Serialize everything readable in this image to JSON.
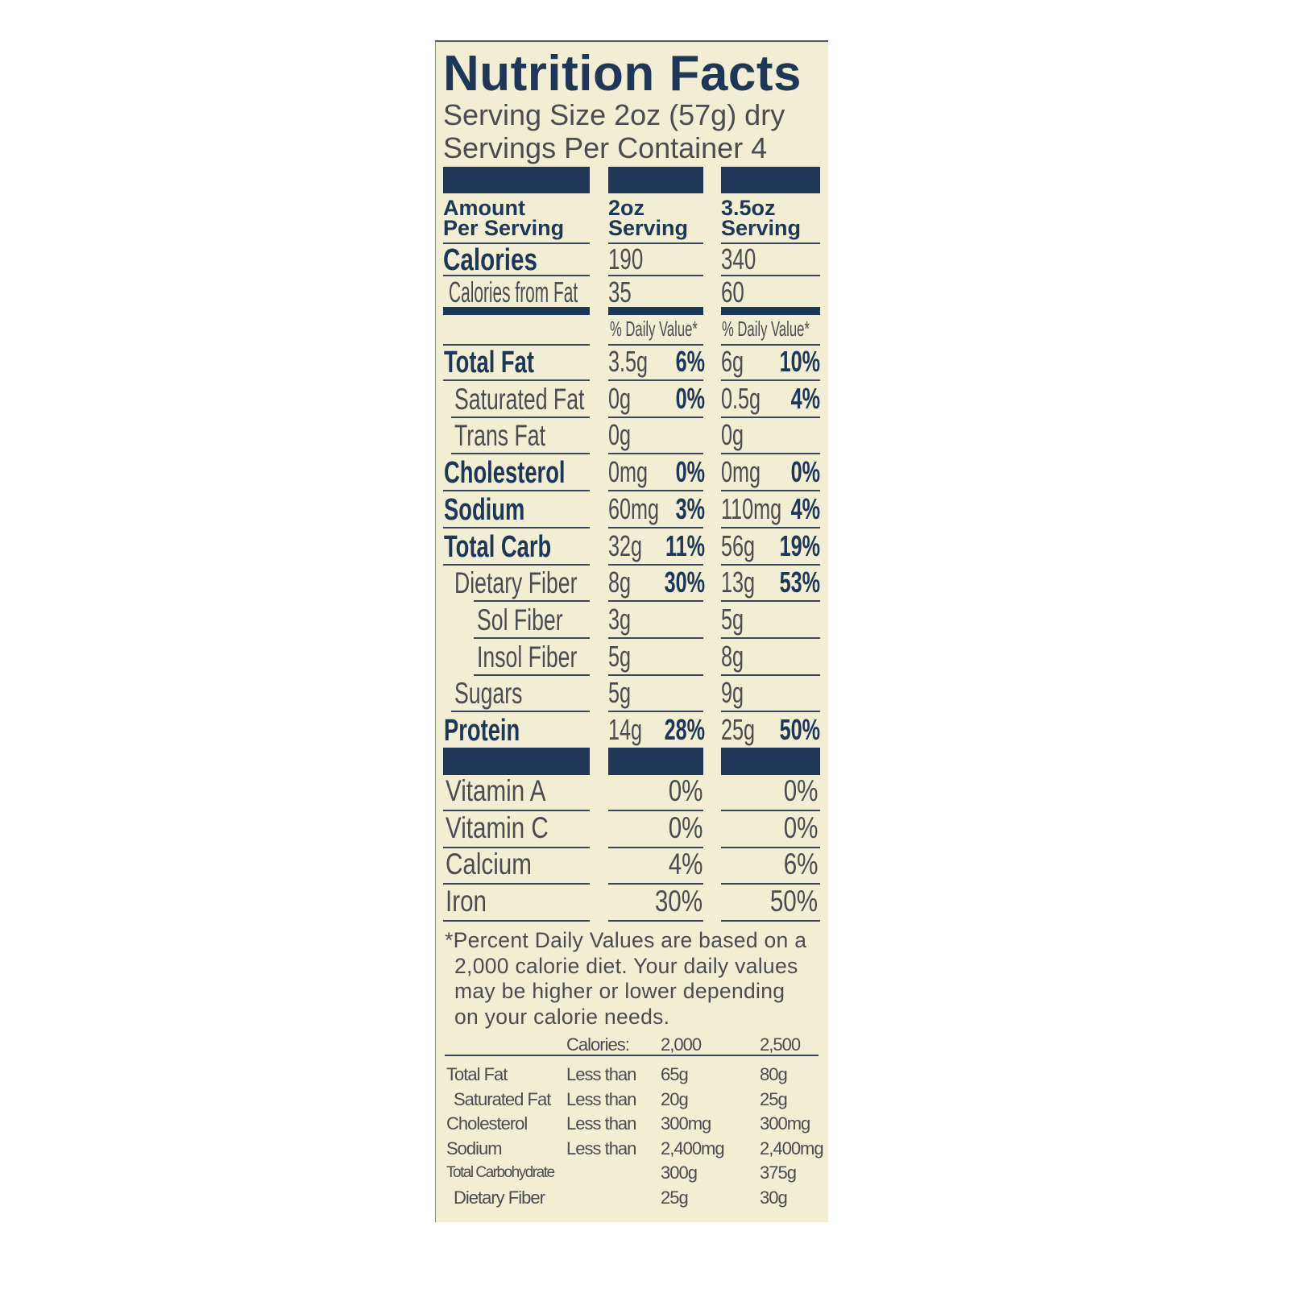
{
  "label": {
    "title": "Nutrition Facts",
    "serving_size": "Serving Size 2oz (57g) dry",
    "servings_per_container": "Servings Per Container 4",
    "header": {
      "amount_line1": "Amount",
      "amount_line2": "Per Serving",
      "col1_line1": "2oz",
      "col1_line2": "Serving",
      "col2_line1": "3.5oz",
      "col2_line2": "Serving"
    },
    "calories": {
      "label": "Calories",
      "col1": "190",
      "col2": "340"
    },
    "calories_from_fat": {
      "label": "Calories from Fat",
      "col1": "35",
      "col2": "60"
    },
    "daily_value_header": {
      "col1": "% Daily Value*",
      "col2": "% Daily Value*"
    },
    "nutrients": [
      {
        "label": "Total Fat",
        "bold": true,
        "indent": 0,
        "col1_amount": "3.5g",
        "col1_dv": "6%",
        "col2_amount": "6g",
        "col2_dv": "10%"
      },
      {
        "label": "Saturated Fat",
        "bold": false,
        "indent": 1,
        "col1_amount": "0g",
        "col1_dv": "0%",
        "col2_amount": "0.5g",
        "col2_dv": "4%"
      },
      {
        "label": "Trans Fat",
        "bold": false,
        "indent": 1,
        "col1_amount": "0g",
        "col1_dv": "",
        "col2_amount": "0g",
        "col2_dv": ""
      },
      {
        "label": "Cholesterol",
        "bold": true,
        "indent": 0,
        "col1_amount": "0mg",
        "col1_dv": "0%",
        "col2_amount": "0mg",
        "col2_dv": "0%"
      },
      {
        "label": "Sodium",
        "bold": true,
        "indent": 0,
        "col1_amount": "60mg",
        "col1_dv": "3%",
        "col2_amount": "110mg",
        "col2_dv": "4%"
      },
      {
        "label": "Total Carb",
        "bold": true,
        "indent": 0,
        "col1_amount": "32g",
        "col1_dv": "11%",
        "col2_amount": "56g",
        "col2_dv": "19%"
      },
      {
        "label": "Dietary Fiber",
        "bold": false,
        "indent": 1,
        "col1_amount": "8g",
        "col1_dv": "30%",
        "col2_amount": "13g",
        "col2_dv": "53%"
      },
      {
        "label": "Sol Fiber",
        "bold": false,
        "indent": 2,
        "col1_amount": "3g",
        "col1_dv": "",
        "col2_amount": "5g",
        "col2_dv": ""
      },
      {
        "label": "Insol Fiber",
        "bold": false,
        "indent": 2,
        "col1_amount": "5g",
        "col1_dv": "",
        "col2_amount": "8g",
        "col2_dv": ""
      },
      {
        "label": "Sugars",
        "bold": false,
        "indent": 1,
        "col1_amount": "5g",
        "col1_dv": "",
        "col2_amount": "9g",
        "col2_dv": ""
      },
      {
        "label": "Protein",
        "bold": true,
        "indent": 0,
        "col1_amount": "14g",
        "col1_dv": "28%",
        "col2_amount": "25g",
        "col2_dv": "50%"
      }
    ],
    "vitamins": [
      {
        "label": "Vitamin A",
        "col1": "0%",
        "col2": "0%"
      },
      {
        "label": "Vitamin C",
        "col1": "0%",
        "col2": "0%"
      },
      {
        "label": "Calcium",
        "col1": "4%",
        "col2": "6%"
      },
      {
        "label": "Iron",
        "col1": "30%",
        "col2": "50%"
      }
    ],
    "footnote": [
      "*Percent Daily Values are based on a",
      "2,000 calorie diet. Your daily values",
      "may be higher or lower depending",
      "on your calorie needs."
    ],
    "daily_table": {
      "header": {
        "label": "Calories:",
        "col1": "2,000",
        "col2": "2,500"
      },
      "rows": [
        {
          "nutrient": "Total Fat",
          "qualifier": "Less than",
          "col1": "65g",
          "col2": "80g"
        },
        {
          "nutrient": "Saturated Fat",
          "qualifier": "Less than",
          "col1": "20g",
          "col2": "25g"
        },
        {
          "nutrient": "Cholesterol",
          "qualifier": "Less than",
          "col1": "300mg",
          "col2": "300mg"
        },
        {
          "nutrient": "Sodium",
          "qualifier": "Less than",
          "col1": "2,400mg",
          "col2": "2,400mg"
        },
        {
          "nutrient": "Total Carbohydrate",
          "qualifier": "",
          "col1": "300g",
          "col2": "375g"
        },
        {
          "nutrient": "Dietary Fiber",
          "qualifier": "",
          "col1": "25g",
          "col2": "30g"
        }
      ]
    },
    "colors": {
      "background": "#f1eed3",
      "ink": "#1e3658",
      "text_gray": "#4a4c50"
    }
  }
}
